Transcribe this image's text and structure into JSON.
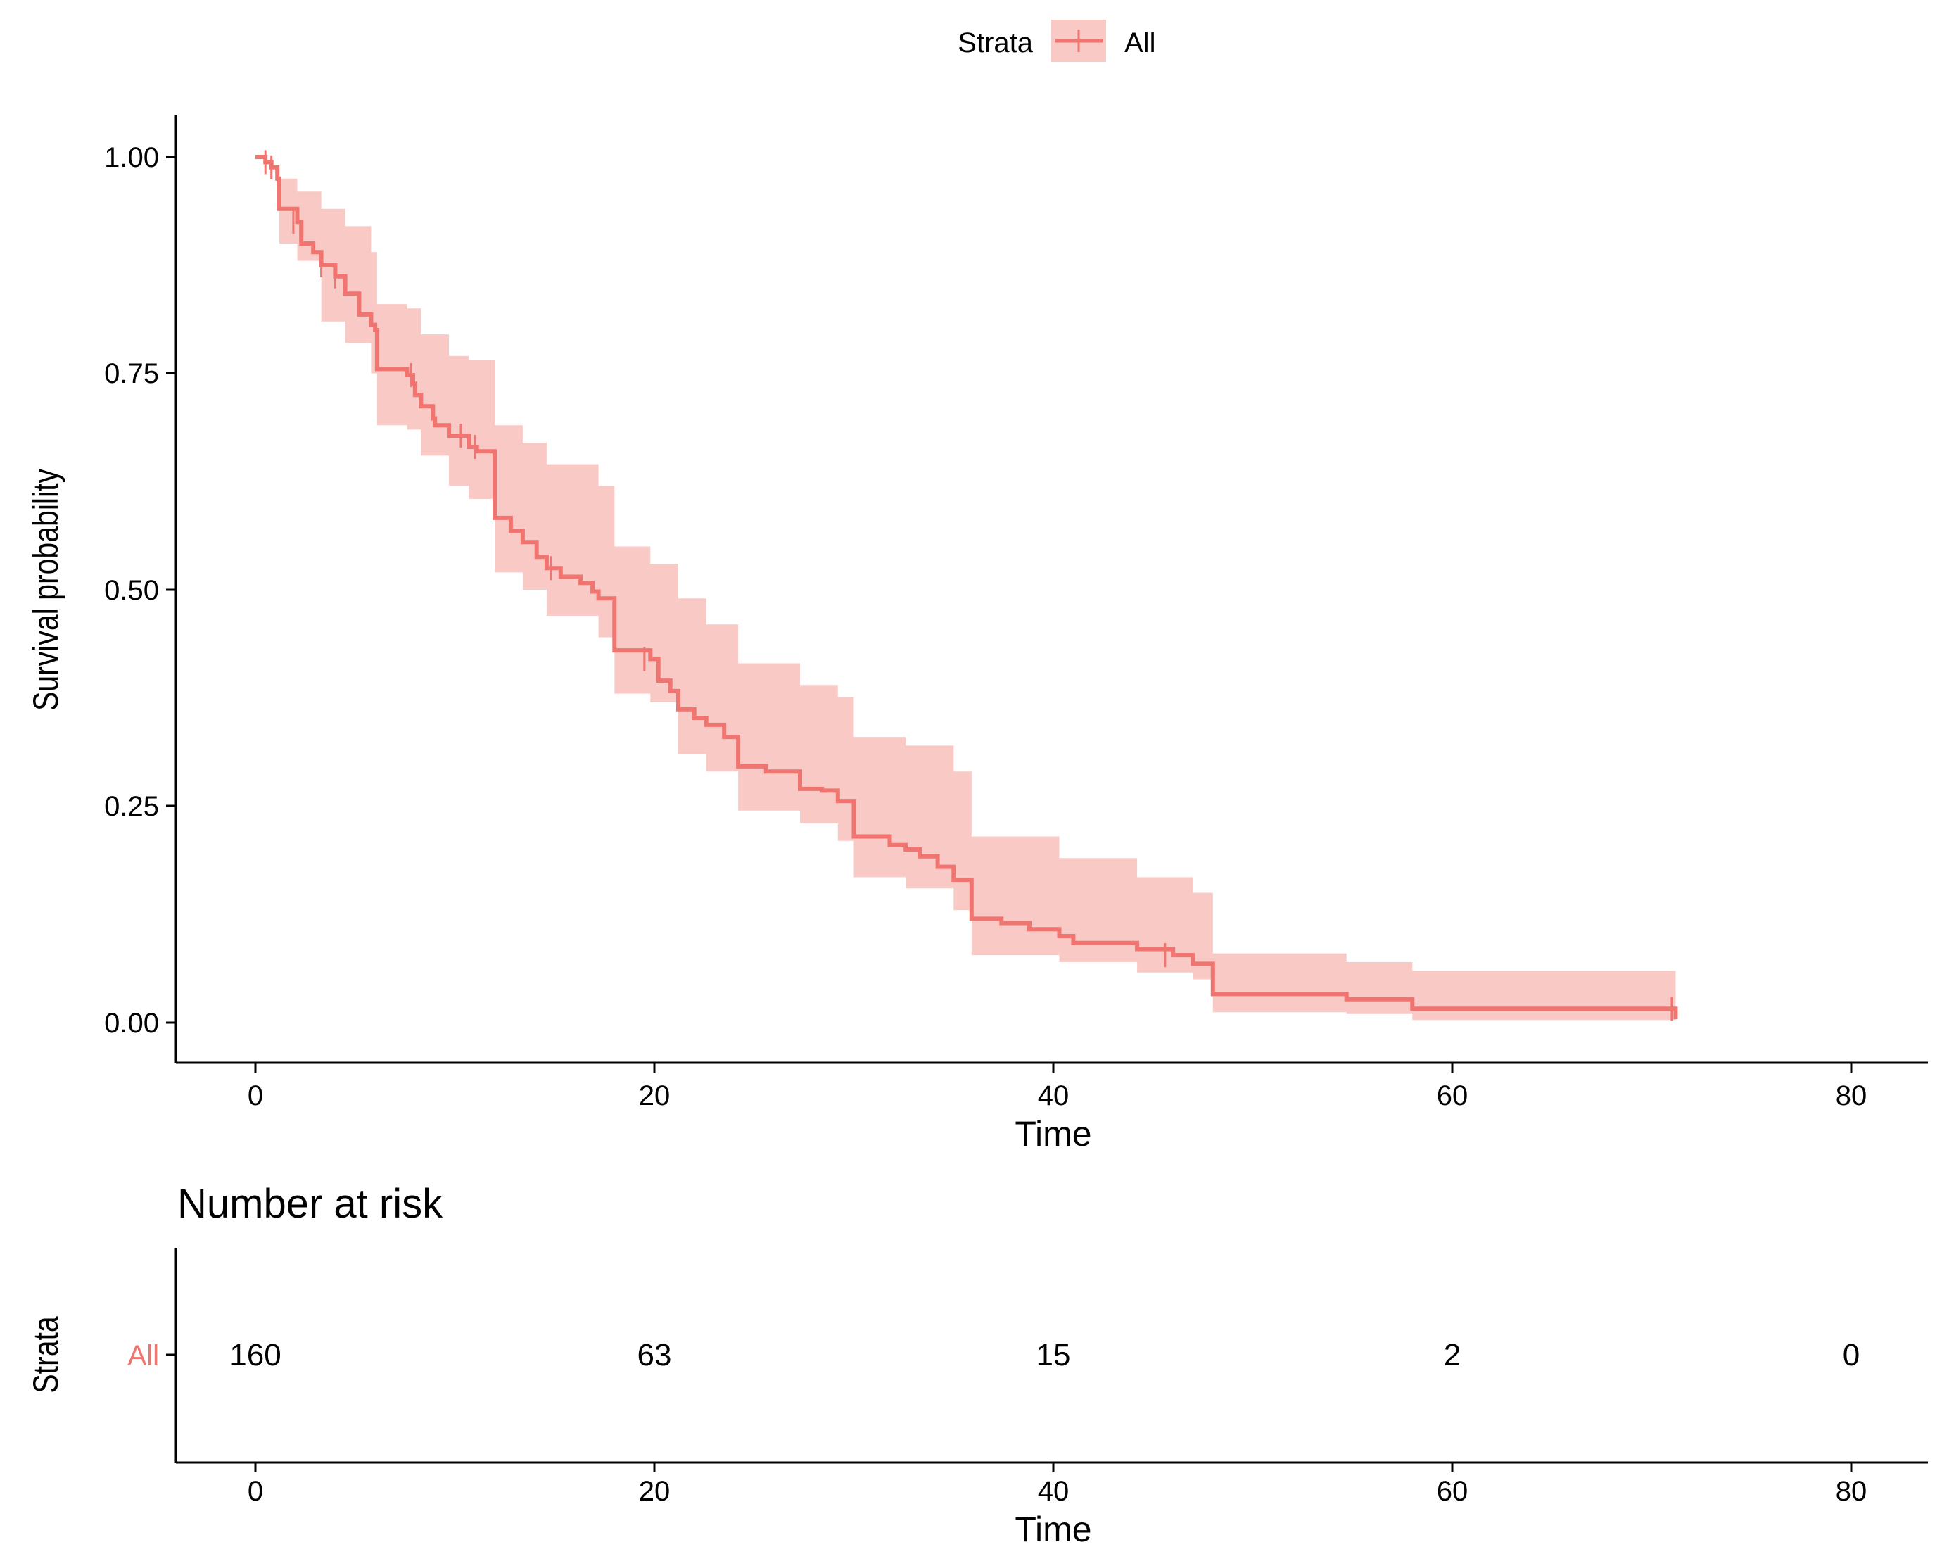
{
  "chart_data": [
    {
      "type": "line",
      "subtype": "kaplan-meier step curve with confidence band",
      "title": "",
      "xlabel": "Time",
      "ylabel": "Survival probability",
      "xlim": [
        -4,
        84
      ],
      "ylim": [
        -0.05,
        1.05
      ],
      "x_ticks": [
        0,
        20,
        40,
        60,
        80
      ],
      "x_tick_labels": [
        "0",
        "20",
        "40",
        "60",
        "80"
      ],
      "y_ticks": [
        0,
        0.25,
        0.5,
        0.75,
        1
      ],
      "y_tick_labels": [
        "0.00",
        "0.25",
        "0.50",
        "0.75",
        "1.00"
      ],
      "grid": false,
      "legend": {
        "title": "Strata",
        "placement": "top",
        "entries": [
          "All"
        ]
      },
      "series_color": "#f07470",
      "band_color": "#f9c9c6",
      "series": [
        {
          "name": "All",
          "steps": [
            [
              0,
              1.0
            ],
            [
              0.5,
              0.994
            ],
            [
              0.8,
              0.988
            ],
            [
              1.1,
              0.975
            ],
            [
              1.2,
              0.94
            ],
            [
              2.1,
              0.925
            ],
            [
              2.3,
              0.9
            ],
            [
              2.9,
              0.89
            ],
            [
              3.3,
              0.875
            ],
            [
              4.0,
              0.862
            ],
            [
              4.5,
              0.842
            ],
            [
              5.2,
              0.818
            ],
            [
              5.8,
              0.806
            ],
            [
              6.0,
              0.8
            ],
            [
              6.1,
              0.755
            ],
            [
              7.6,
              0.748
            ],
            [
              7.9,
              0.738
            ],
            [
              8.0,
              0.725
            ],
            [
              8.3,
              0.712
            ],
            [
              8.9,
              0.698
            ],
            [
              9.0,
              0.69
            ],
            [
              9.7,
              0.678
            ],
            [
              10.7,
              0.665
            ],
            [
              11.1,
              0.66
            ],
            [
              12.0,
              0.583
            ],
            [
              12.8,
              0.568
            ],
            [
              13.4,
              0.555
            ],
            [
              14.1,
              0.538
            ],
            [
              14.6,
              0.525
            ],
            [
              15.3,
              0.515
            ],
            [
              16.3,
              0.508
            ],
            [
              16.9,
              0.498
            ],
            [
              17.2,
              0.49
            ],
            [
              18.0,
              0.43
            ],
            [
              19.8,
              0.42
            ],
            [
              20.2,
              0.395
            ],
            [
              20.8,
              0.383
            ],
            [
              21.2,
              0.362
            ],
            [
              22.0,
              0.352
            ],
            [
              22.6,
              0.344
            ],
            [
              23.5,
              0.33
            ],
            [
              24.2,
              0.296
            ],
            [
              25.6,
              0.29
            ],
            [
              27.1,
              0.29
            ],
            [
              27.3,
              0.27
            ],
            [
              28.4,
              0.268
            ],
            [
              29.0,
              0.268
            ],
            [
              29.2,
              0.256
            ],
            [
              30.0,
              0.215
            ],
            [
              31.8,
              0.205
            ],
            [
              32.6,
              0.2
            ],
            [
              33.3,
              0.192
            ],
            [
              34.2,
              0.18
            ],
            [
              35.0,
              0.165
            ],
            [
              35.9,
              0.12
            ],
            [
              37.4,
              0.115
            ],
            [
              38.8,
              0.108
            ],
            [
              40.3,
              0.1
            ],
            [
              41.0,
              0.092
            ],
            [
              44.2,
              0.085
            ],
            [
              46.0,
              0.078
            ],
            [
              47.0,
              0.068
            ],
            [
              48.0,
              0.033
            ],
            [
              54.7,
              0.027
            ],
            [
              58.0,
              0.016
            ],
            [
              71.0,
              0.016
            ],
            [
              71.2,
              0.004
            ]
          ],
          "ci_upper": [
            [
              0,
              1.0
            ],
            [
              1.2,
              0.975
            ],
            [
              2.1,
              0.96
            ],
            [
              3.3,
              0.94
            ],
            [
              4.5,
              0.92
            ],
            [
              5.8,
              0.89
            ],
            [
              6.1,
              0.83
            ],
            [
              7.6,
              0.825
            ],
            [
              8.3,
              0.795
            ],
            [
              9.7,
              0.77
            ],
            [
              10.7,
              0.765
            ],
            [
              12.0,
              0.69
            ],
            [
              13.4,
              0.67
            ],
            [
              14.6,
              0.645
            ],
            [
              17.2,
              0.62
            ],
            [
              18.0,
              0.55
            ],
            [
              19.8,
              0.53
            ],
            [
              21.2,
              0.49
            ],
            [
              22.6,
              0.46
            ],
            [
              24.2,
              0.415
            ],
            [
              27.3,
              0.39
            ],
            [
              29.2,
              0.376
            ],
            [
              30.0,
              0.33
            ],
            [
              32.6,
              0.32
            ],
            [
              35.0,
              0.29
            ],
            [
              35.9,
              0.215
            ],
            [
              40.3,
              0.19
            ],
            [
              44.2,
              0.168
            ],
            [
              47.0,
              0.15
            ],
            [
              48.0,
              0.08
            ],
            [
              54.7,
              0.07
            ],
            [
              58.0,
              0.06
            ],
            [
              71.2,
              0.06
            ]
          ],
          "ci_lower": [
            [
              0,
              1.0
            ],
            [
              1.2,
              0.9
            ],
            [
              2.1,
              0.88
            ],
            [
              3.3,
              0.81
            ],
            [
              4.5,
              0.785
            ],
            [
              5.8,
              0.75
            ],
            [
              6.1,
              0.69
            ],
            [
              7.6,
              0.685
            ],
            [
              8.3,
              0.655
            ],
            [
              9.7,
              0.62
            ],
            [
              10.7,
              0.605
            ],
            [
              12.0,
              0.52
            ],
            [
              13.4,
              0.5
            ],
            [
              14.6,
              0.47
            ],
            [
              17.2,
              0.445
            ],
            [
              18.0,
              0.38
            ],
            [
              19.8,
              0.37
            ],
            [
              21.2,
              0.31
            ],
            [
              22.6,
              0.29
            ],
            [
              24.2,
              0.245
            ],
            [
              27.3,
              0.23
            ],
            [
              29.2,
              0.21
            ],
            [
              30.0,
              0.168
            ],
            [
              32.6,
              0.155
            ],
            [
              35.0,
              0.13
            ],
            [
              35.9,
              0.078
            ],
            [
              40.3,
              0.07
            ],
            [
              44.2,
              0.058
            ],
            [
              47.0,
              0.05
            ],
            [
              48.0,
              0.012
            ],
            [
              54.7,
              0.01
            ],
            [
              58.0,
              0.003
            ],
            [
              71.2,
              0.0
            ]
          ],
          "censor_marks": [
            [
              0.5,
              0.994
            ],
            [
              0.8,
              0.988
            ],
            [
              1.9,
              0.925
            ],
            [
              3.3,
              0.875
            ],
            [
              4.0,
              0.862
            ],
            [
              7.8,
              0.748
            ],
            [
              10.3,
              0.678
            ],
            [
              11.0,
              0.665
            ],
            [
              14.8,
              0.525
            ],
            [
              19.5,
              0.42
            ],
            [
              45.6,
              0.078
            ],
            [
              71.0,
              0.016
            ]
          ]
        }
      ]
    },
    {
      "type": "table",
      "title": "Number at risk",
      "xlabel": "Time",
      "ylabel": "Strata",
      "rows": [
        "All"
      ],
      "times": [
        0,
        20,
        40,
        60,
        80
      ],
      "x_tick_labels": [
        "0",
        "20",
        "40",
        "60",
        "80"
      ],
      "values": [
        [
          "160",
          "63",
          "15",
          "2",
          "0"
        ]
      ]
    }
  ]
}
